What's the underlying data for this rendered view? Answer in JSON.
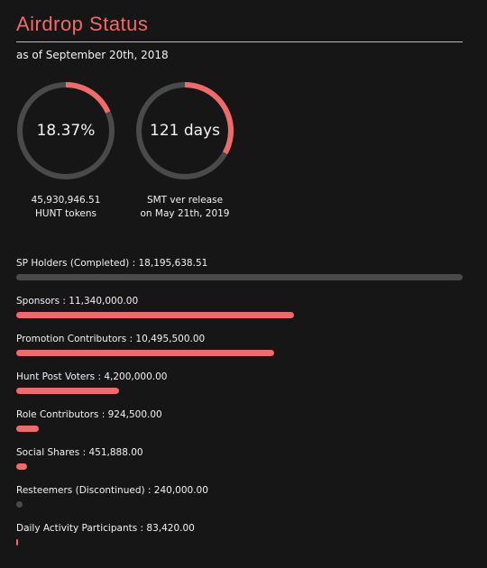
{
  "header": {
    "title": "Airdrop Status",
    "subtitle": "as of September 20th, 2018"
  },
  "colors": {
    "accent": "#f06a6a",
    "track": "#4a4a4a",
    "background": "#161616",
    "text": "#f2f2f2"
  },
  "gauges": [
    {
      "value_text": "18.37%",
      "fraction": 0.1837,
      "caption_line1": "45,930,946.51",
      "caption_line2": "HUNT tokens"
    },
    {
      "value_text": "121 days",
      "fraction": 0.33,
      "caption_line1": "SMT ver release",
      "caption_line2": "on May 21th, 2019"
    }
  ],
  "chart_data": {
    "type": "bar",
    "orientation": "horizontal",
    "categories": [
      "SP Holders (Completed)",
      "Sponsors",
      "Promotion Contributors",
      "Hunt Post Voters",
      "Role Contributors",
      "Social Shares",
      "Resteemers (Discontinued)",
      "Daily Activity Participants"
    ],
    "values": [
      18195638.51,
      11340000.0,
      10495500.0,
      4200000.0,
      924500.0,
      451888.0,
      240000.0,
      83420.0
    ],
    "labels": [
      "SP Holders (Completed) : 18,195,638.51",
      "Sponsors : 11,340,000.00",
      "Promotion Contributors : 10,495,500.00",
      "Hunt Post Voters : 4,200,000.00",
      "Role Contributors : 924,500.00",
      "Social Shares : 451,888.00",
      "Resteemers (Discontinued) : 240,000.00",
      "Daily Activity Participants : 83,420.00"
    ],
    "bar_colors": [
      "#4a4a4a",
      "#f06a6a",
      "#f06a6a",
      "#f06a6a",
      "#f06a6a",
      "#f06a6a",
      "#4a4a4a",
      "#f06a6a"
    ],
    "xlim": [
      0,
      18195638.51
    ]
  }
}
